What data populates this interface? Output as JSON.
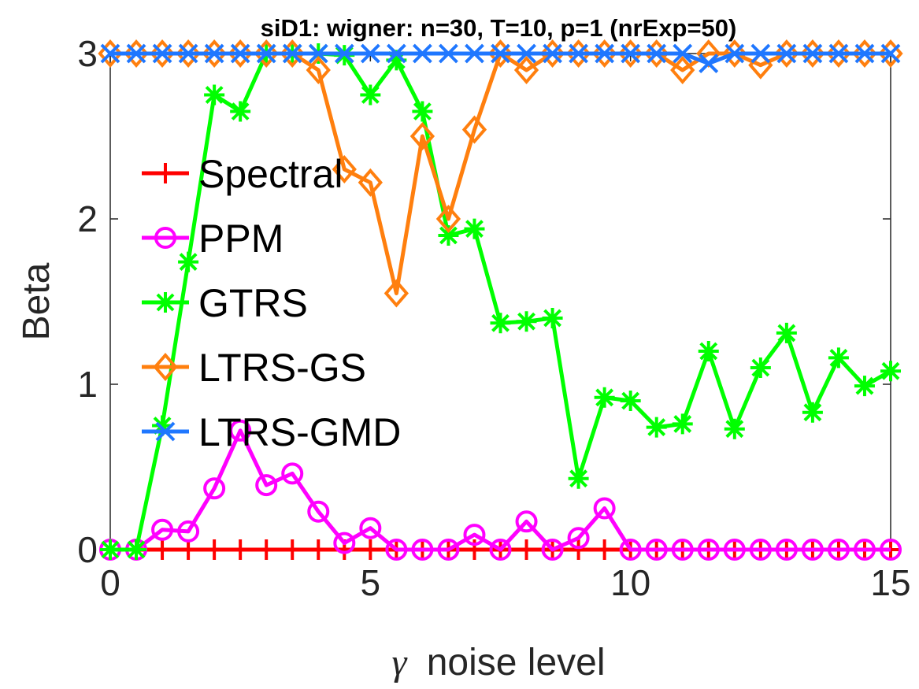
{
  "chart_data": {
    "type": "line",
    "title": "siD1: wigner: n=30, T=10, p=1 (nrExp=50)",
    "xlabel_symbol": "γ",
    "xlabel_text": "noise level",
    "ylabel": "Beta",
    "xlim": [
      0,
      15
    ],
    "ylim": [
      0,
      3
    ],
    "xticks": [
      0,
      5,
      10,
      15
    ],
    "yticks": [
      0,
      1,
      2,
      3
    ],
    "grid": false,
    "legend_position": "left",
    "x": [
      0,
      0.5,
      1,
      1.5,
      2,
      2.5,
      3,
      3.5,
      4,
      4.5,
      5,
      5.5,
      6,
      6.5,
      7,
      7.5,
      8,
      8.5,
      9,
      9.5,
      10,
      10.5,
      11,
      11.5,
      12,
      12.5,
      13,
      13.5,
      14,
      14.5,
      15
    ],
    "series": [
      {
        "name": "Spectral",
        "color": "#ff0000",
        "marker": "plus",
        "values": [
          0,
          0,
          0,
          0,
          0,
          0,
          0,
          0,
          0,
          0,
          0,
          0,
          0,
          0,
          0,
          0,
          0,
          0,
          0,
          0,
          0,
          0,
          0,
          0,
          0,
          0,
          0,
          0,
          0,
          0,
          0
        ]
      },
      {
        "name": "PPM",
        "color": "#ff00ff",
        "marker": "circle",
        "values": [
          0,
          0,
          0.12,
          0.11,
          0.37,
          0.72,
          0.39,
          0.46,
          0.23,
          0.04,
          0.13,
          0,
          0,
          0,
          0.09,
          0,
          0.17,
          0,
          0.07,
          0.25,
          0,
          0,
          0,
          0,
          0,
          0,
          0,
          0,
          0,
          0,
          0
        ]
      },
      {
        "name": "GTRS",
        "color": "#00ff00",
        "marker": "asterisk",
        "values": [
          0,
          0,
          0.75,
          1.74,
          2.75,
          2.65,
          3,
          3,
          3,
          2.99,
          2.75,
          2.96,
          2.65,
          1.9,
          1.94,
          1.37,
          1.38,
          1.4,
          0.43,
          0.92,
          0.9,
          0.74,
          0.76,
          1.2,
          0.73,
          1.1,
          1.31,
          0.83,
          1.16,
          0.99,
          1.08
        ]
      },
      {
        "name": "LTRS-GS",
        "color": "#ff7f0e",
        "marker": "diamond",
        "values": [
          3,
          3,
          3,
          3,
          3,
          3,
          3,
          3,
          2.9,
          2.3,
          2.22,
          1.55,
          2.5,
          2,
          2.54,
          3,
          2.9,
          3,
          3,
          3,
          3,
          3,
          2.9,
          3,
          3,
          2.93,
          3,
          3,
          3,
          3,
          3
        ]
      },
      {
        "name": "LTRS-GMD",
        "color": "#1f77ff",
        "marker": "x",
        "values": [
          3,
          3,
          3,
          3,
          3,
          3,
          3,
          3,
          3,
          3,
          3,
          3,
          3,
          3,
          3,
          3,
          3,
          3,
          3,
          3,
          3,
          3,
          3,
          2.94,
          3,
          3,
          3,
          3,
          3,
          3,
          3
        ]
      }
    ]
  }
}
